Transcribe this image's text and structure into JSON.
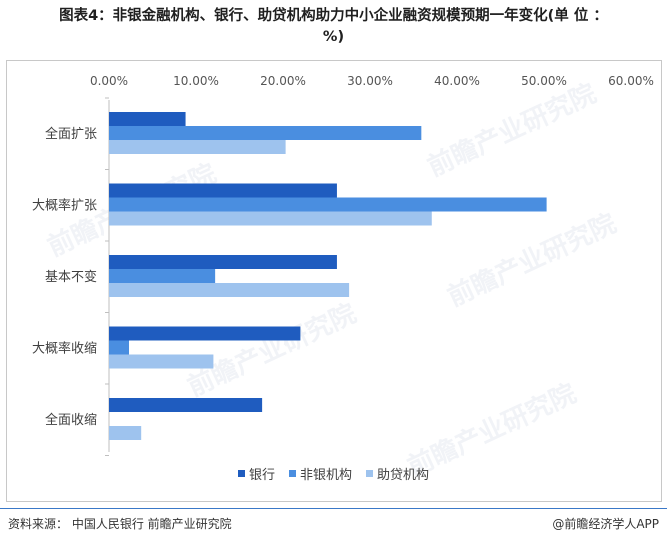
{
  "title_line1": "图表4：非银金融机构、银行、助贷机构助力中小企业融资规模预期一年变化(单 位 ：",
  "title_line2": "%)",
  "source": "资料来源： 中国人民银行 前瞻产业研究院",
  "brand": "@前瞻经济学人APP",
  "watermark": "前瞻产业研究院",
  "chart_data": {
    "type": "bar",
    "orientation": "horizontal",
    "categories": [
      "全面扩张",
      "大概率扩张",
      "基本不变",
      "大概率收缩",
      "全面收缩"
    ],
    "x_ticks": [
      "0.00%",
      "10.00%",
      "20.00%",
      "30.00%",
      "40.00%",
      "50.00%",
      "60.00%"
    ],
    "xlim": [
      0,
      60
    ],
    "axis_position": "top",
    "legend_position": "bottom",
    "grid": false,
    "series": [
      {
        "name": "银行",
        "color": "#1f5cbf",
        "values": [
          8.8,
          26.2,
          26.2,
          22.0,
          17.6
        ]
      },
      {
        "name": "非银机构",
        "color": "#4a8ee0",
        "values": [
          35.9,
          50.3,
          12.2,
          2.3,
          0
        ]
      },
      {
        "name": "助贷机构",
        "color": "#9ec3ee",
        "values": [
          20.3,
          37.1,
          27.6,
          12.0,
          3.7
        ]
      }
    ]
  }
}
